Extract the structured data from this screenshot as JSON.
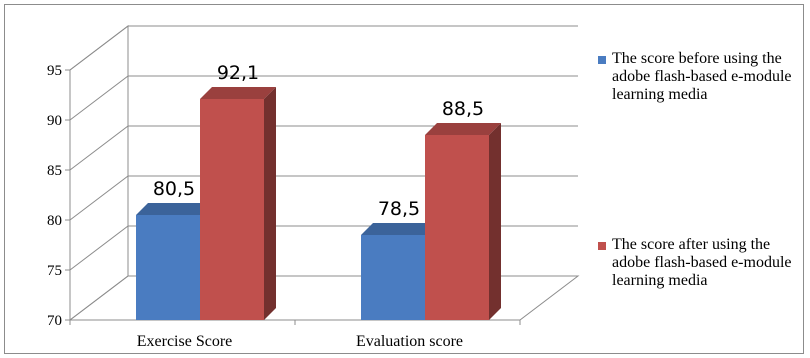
{
  "chart_data": {
    "type": "bar",
    "title": "",
    "xlabel": "",
    "ylabel": "",
    "categories": [
      "Exercise Score",
      "Evaluation score"
    ],
    "ylim": [
      70,
      95
    ],
    "yticks": [
      70,
      75,
      80,
      85,
      90,
      95
    ],
    "grid": true,
    "legend_position": "right",
    "series": [
      {
        "name": "The score before using the adobe flash-based e-module learning media",
        "values": [
          80.5,
          78.5
        ],
        "labels": [
          "80,5",
          "78,5"
        ],
        "color": "#4a7cc1"
      },
      {
        "name": "The score after using the adobe flash-based e-module learning media",
        "values": [
          92.1,
          88.5
        ],
        "labels": [
          "92,1",
          "88,5"
        ],
        "color": "#c0504d"
      }
    ]
  }
}
